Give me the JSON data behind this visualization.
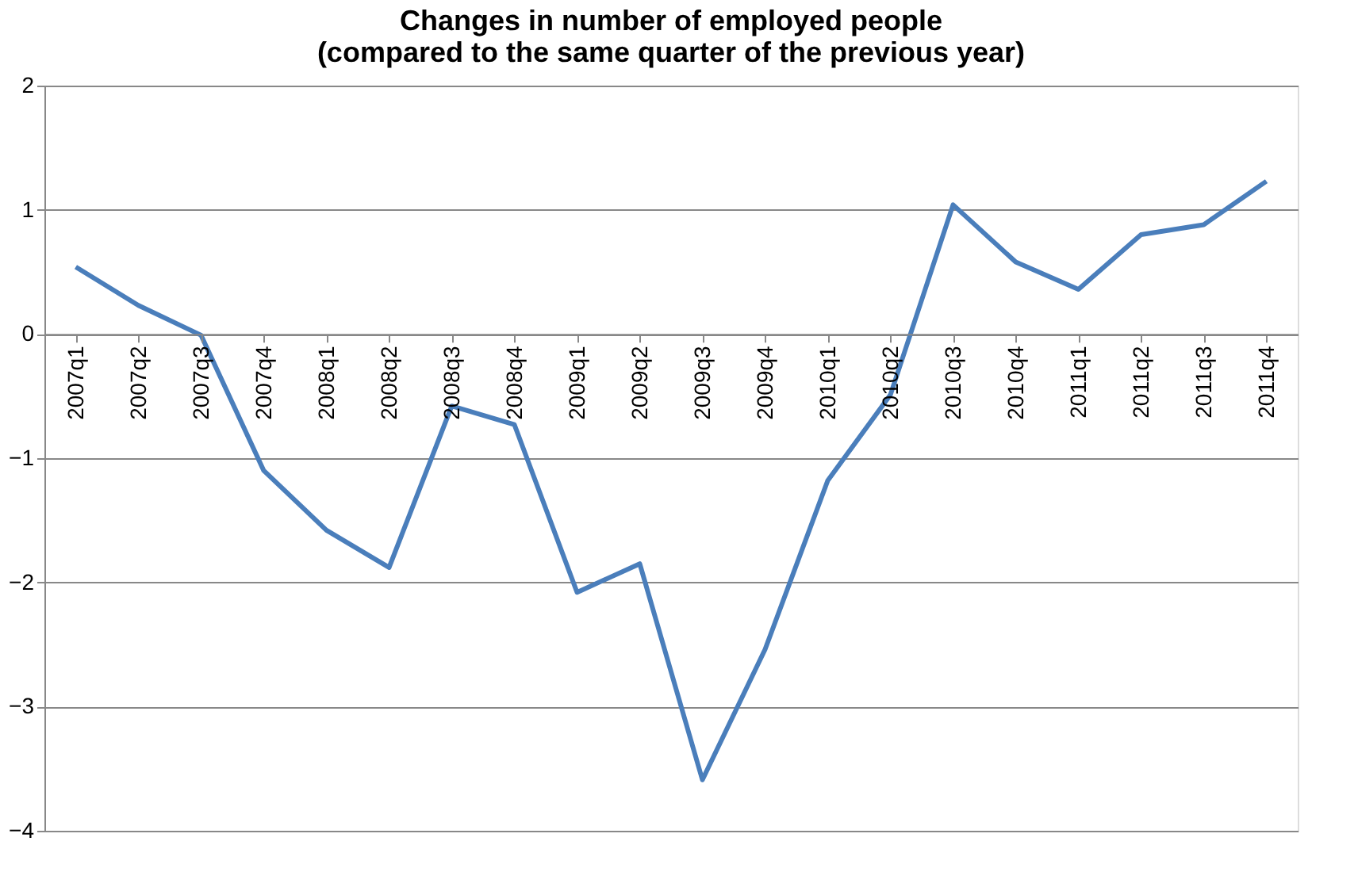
{
  "chart_data": {
    "type": "line",
    "title": "Changes in number of employed people\n(compared to the same quarter of the previous year)",
    "categories": [
      "2007q1",
      "2007q2",
      "2007q3",
      "2007q4",
      "2008q1",
      "2008q2",
      "2008q3",
      "2008q4",
      "2009q1",
      "2009q2",
      "2009q3",
      "2009q4",
      "2010q1",
      "2010q2",
      "2010q3",
      "2010q4",
      "2011q1",
      "2011q2",
      "2011q3",
      "2011q4"
    ],
    "series": [
      {
        "color": "#4a7ebb",
        "values": [
          0.54,
          0.23,
          -0.01,
          -1.1,
          -1.58,
          -1.88,
          -0.58,
          -0.73,
          -2.08,
          -1.85,
          -3.59,
          -2.54,
          -1.18,
          -0.49,
          1.04,
          0.58,
          0.36,
          0.8,
          0.88,
          1.23
        ]
      }
    ],
    "ylim": [
      -4,
      2
    ],
    "yticks": [
      -4,
      -3,
      -2,
      -1,
      0,
      1,
      2
    ],
    "grid": "y",
    "marker": "none",
    "line_style": "solid"
  }
}
